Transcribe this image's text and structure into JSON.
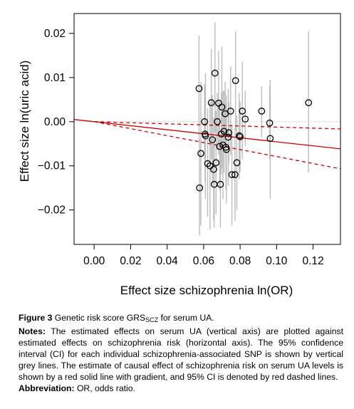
{
  "chart_data": {
    "type": "scatter",
    "xlabel": "Effect size schizophrenia ln(OR)",
    "ylabel": "Effect size ln(uric acid)",
    "xlim": [
      -0.011,
      0.135
    ],
    "ylim": [
      -0.0278,
      0.0245
    ],
    "xticks": [
      "0.00",
      "0.02",
      "0.04",
      "0.06",
      "0.08",
      "0.10",
      "0.12"
    ],
    "xtick_values": [
      0,
      0.02,
      0.04,
      0.06,
      0.08,
      0.1,
      0.12
    ],
    "yticks": [
      "0.02",
      "0.01",
      "0.00",
      "−0.01",
      "−0.02"
    ],
    "ytick_values": [
      0.02,
      0.01,
      0.0,
      -0.01,
      -0.02
    ],
    "points": [
      {
        "x": 0.0575,
        "y": 0.0075,
        "ci": [
          -0.0045,
          0.0195
        ]
      },
      {
        "x": 0.0585,
        "y": -0.0072,
        "ci": [
          -0.0235,
          0.009
        ]
      },
      {
        "x": 0.0578,
        "y": -0.015,
        "ci": [
          -0.0258,
          -0.004
        ]
      },
      {
        "x": 0.0605,
        "y": 0.0,
        "ci": [
          -0.0085,
          0.0085
        ]
      },
      {
        "x": 0.0608,
        "y": -0.0028,
        "ci": [
          -0.0135,
          0.0075
        ]
      },
      {
        "x": 0.061,
        "y": -0.0032,
        "ci": [
          -0.0175,
          0.011
        ]
      },
      {
        "x": 0.0622,
        "y": -0.0095,
        "ci": [
          -0.0215,
          0.003
        ]
      },
      {
        "x": 0.0635,
        "y": -0.01,
        "ci": [
          -0.0245,
          0.0045
        ]
      },
      {
        "x": 0.0642,
        "y": 0.0043,
        "ci": [
          -0.0085,
          0.0165
        ]
      },
      {
        "x": 0.0648,
        "y": -0.0041,
        "ci": [
          -0.014,
          0.006
        ]
      },
      {
        "x": 0.0655,
        "y": -0.0108,
        "ci": [
          -0.0225,
          0.001
        ]
      },
      {
        "x": 0.0658,
        "y": -0.0142,
        "ci": [
          -0.024,
          -0.004
        ]
      },
      {
        "x": 0.0662,
        "y": 0.011,
        "ci": [
          -0.0025,
          0.0225
        ]
      },
      {
        "x": 0.0668,
        "y": -0.0093,
        "ci": [
          -0.021,
          0.0025
        ]
      },
      {
        "x": 0.0675,
        "y": 0.0,
        "ci": [
          -0.0065,
          0.0065
        ]
      },
      {
        "x": 0.0682,
        "y": 0.0042,
        "ci": [
          -0.0075,
          0.016
        ]
      },
      {
        "x": 0.0688,
        "y": -0.0056,
        "ci": [
          -0.0155,
          0.0045
        ]
      },
      {
        "x": 0.0692,
        "y": -0.0142,
        "ci": [
          -0.024,
          -0.004
        ]
      },
      {
        "x": 0.0697,
        "y": -0.0028,
        "ci": [
          -0.012,
          0.0065
        ]
      },
      {
        "x": 0.07,
        "y": 0.0033,
        "ci": [
          -0.0105,
          0.017
        ]
      },
      {
        "x": 0.0706,
        "y": -0.0053,
        "ci": [
          -0.0175,
          0.007
        ]
      },
      {
        "x": 0.0712,
        "y": -0.0022,
        "ci": [
          -0.0115,
          0.007
        ]
      },
      {
        "x": 0.0718,
        "y": 0.0018,
        "ci": [
          -0.0055,
          0.009
        ]
      },
      {
        "x": 0.0722,
        "y": -0.0058,
        "ci": [
          -0.0155,
          0.004
        ]
      },
      {
        "x": 0.0725,
        "y": -0.0063,
        "ci": [
          -0.0185,
          0.006
        ]
      },
      {
        "x": 0.0735,
        "y": -0.0035,
        "ci": [
          -0.0145,
          0.0075
        ]
      },
      {
        "x": 0.0738,
        "y": -0.0025,
        "ci": [
          -0.0095,
          0.0045
        ]
      },
      {
        "x": 0.0748,
        "y": 0.0024,
        "ci": [
          -0.0075,
          0.0125
        ]
      },
      {
        "x": 0.0755,
        "y": -0.012,
        "ci": [
          -0.0235,
          -0.0005
        ]
      },
      {
        "x": 0.0775,
        "y": 0.0093,
        "ci": [
          -0.002,
          0.0205
        ]
      },
      {
        "x": 0.0772,
        "y": -0.012,
        "ci": [
          -0.0225,
          -0.0015
        ]
      },
      {
        "x": 0.0782,
        "y": -0.0093,
        "ci": [
          -0.02,
          0.0015
        ]
      },
      {
        "x": 0.0795,
        "y": -0.0032,
        "ci": [
          -0.013,
          0.0065
        ]
      },
      {
        "x": 0.08,
        "y": -0.0034,
        "ci": [
          -0.0115,
          0.0045
        ]
      },
      {
        "x": 0.0812,
        "y": 0.0024,
        "ci": [
          -0.0085,
          0.0135
        ]
      },
      {
        "x": 0.0828,
        "y": 0.0006,
        "ci": [
          -0.0055,
          0.007
        ]
      },
      {
        "x": 0.0918,
        "y": 0.0024,
        "ci": [
          -0.0035,
          0.008
        ]
      },
      {
        "x": 0.0962,
        "y": -0.0003,
        "ci": [
          -0.0085,
          0.008
        ]
      },
      {
        "x": 0.0965,
        "y": -0.0038,
        "ci": [
          -0.0175,
          0.0095
        ]
      },
      {
        "x": 0.1175,
        "y": 0.0043,
        "ci": [
          -0.0115,
          0.0205
        ]
      }
    ],
    "fit": {
      "slope": -0.0456,
      "ci_slope": [
        -0.0122,
        -0.079
      ]
    },
    "colors": {
      "points": "#000000",
      "ci_bars": "#bdbdbd",
      "fit": "#cc0000",
      "zero_line": "#bbbbbb"
    }
  },
  "caption": {
    "label": "Figure 3",
    "title_text": "Genetic risk score GRS",
    "title_sub": "SCZ",
    "title_end": " for serum UA.",
    "notes_label": "Notes:",
    "notes_text": "The estimated effects on serum UA (vertical axis) are plotted against estimated effects on schizophrenia risk (horizontal axis). The 95% confidence interval (CI) for each individual schizophrenia-associated SNP is shown by vertical grey lines. The estimate of causal effect of schizophrenia risk on serum UA levels is shown by a red solid line with gradient, and 95% CI is denoted by red dashed lines.",
    "abbrev_label": "Abbreviation:",
    "abbrev_text": "OR, odds ratio."
  }
}
